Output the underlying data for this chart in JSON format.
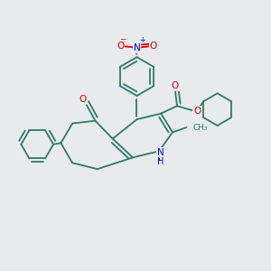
{
  "bg_color": "#e8eaec",
  "bond_color": "#2d7a6e",
  "bond_width": 1.3,
  "atom_colors": {
    "O": "#dd0000",
    "N": "#0000ee",
    "H": "#2d7a6e"
  },
  "figsize": [
    3.0,
    3.0
  ],
  "dpi": 100
}
